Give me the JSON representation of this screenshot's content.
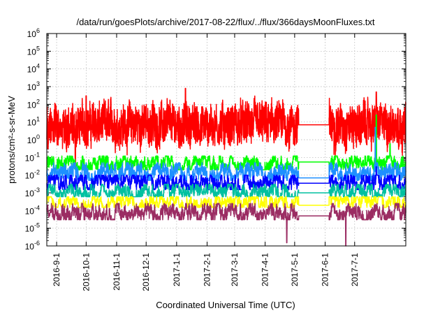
{
  "chart_data": {
    "type": "line",
    "title": "/data/run/goesPlots/archive/2017-08-22/flux/../flux/366daysMoonFluxes.txt",
    "xlabel": "Coordinated Universal Time (UTC)",
    "ylabel": "protons/cm²-s-sr-MeV",
    "y_scale": "log",
    "ylim": [
      1e-06,
      1000000.0
    ],
    "y_ticks": [
      {
        "value": 1e-06,
        "base": "10",
        "exp": "-6"
      },
      {
        "value": 1e-05,
        "base": "10",
        "exp": "-5"
      },
      {
        "value": 0.0001,
        "base": "10",
        "exp": "-4"
      },
      {
        "value": 0.001,
        "base": "10",
        "exp": "-3"
      },
      {
        "value": 0.01,
        "base": "10",
        "exp": "-2"
      },
      {
        "value": 0.1,
        "base": "10",
        "exp": "-1"
      },
      {
        "value": 1,
        "base": "10",
        "exp": "0"
      },
      {
        "value": 10,
        "base": "10",
        "exp": "1"
      },
      {
        "value": 100,
        "base": "10",
        "exp": "2"
      },
      {
        "value": 1000,
        "base": "10",
        "exp": "3"
      },
      {
        "value": 10000,
        "base": "10",
        "exp": "4"
      },
      {
        "value": 100000,
        "base": "10",
        "exp": "5"
      },
      {
        "value": 1000000,
        "base": "10",
        "exp": "6"
      }
    ],
    "xlim": [
      "2016-08-22",
      "2017-08-22"
    ],
    "x_ticks": [
      "2016-9-1",
      "2016-10-1",
      "2016-11-1",
      "2016-12-1",
      "2017-1-1",
      "2017-2-1",
      "2017-3-1",
      "2017-4-1",
      "2017-5-1",
      "2017-6-1",
      "2017-7-1"
    ],
    "grid": true,
    "data_gap": [
      "2017-05-05",
      "2017-06-05"
    ],
    "series": [
      {
        "color": "#ff0000",
        "typical": 7,
        "low": 0.05,
        "high": 400,
        "gap_level": 7,
        "spikes": [
          [
            "2016-10-01",
            300
          ],
          [
            "2017-01-10",
            800
          ],
          [
            "2017-07-23",
            500
          ],
          [
            "2017-08-14",
            60
          ]
        ],
        "dips": [
          [
            "2016-09-20",
            0.03
          ]
        ]
      },
      {
        "color": "#00ff00",
        "typical": 0.045,
        "low": 0.02,
        "high": 0.12,
        "gap_level": 0.055,
        "spikes": [
          [
            "2017-07-23",
            25
          ],
          [
            "2017-08-06",
            0.6
          ]
        ],
        "dips": []
      },
      {
        "color": "#1e90ff",
        "typical": 0.015,
        "low": 0.005,
        "high": 0.05,
        "gap_level": 0.007,
        "spikes": [
          [
            "2017-07-22",
            5
          ]
        ],
        "dips": []
      },
      {
        "color": "#0000ff",
        "typical": 0.004,
        "low": 0.0015,
        "high": 0.01,
        "gap_level": 0.0035,
        "spikes": [
          [
            "2017-07-23",
            0.03
          ]
        ],
        "dips": []
      },
      {
        "color": "#00c0a0",
        "typical": 0.0012,
        "low": 0.0006,
        "high": 0.003,
        "gap_level": 0.001,
        "spikes": [],
        "dips": []
      },
      {
        "color": "#ffff00",
        "typical": 0.0003,
        "low": 0.00015,
        "high": 0.0006,
        "gap_level": 0.0002,
        "spikes": [],
        "dips": []
      },
      {
        "color": "#9b2d63",
        "typical": 8e-05,
        "low": 3e-05,
        "high": 0.00025,
        "gap_level": 5e-05,
        "spikes": [],
        "dips": [
          [
            "2017-04-23",
            1.5e-06
          ],
          [
            "2017-06-22",
            1e-06
          ]
        ]
      }
    ]
  }
}
